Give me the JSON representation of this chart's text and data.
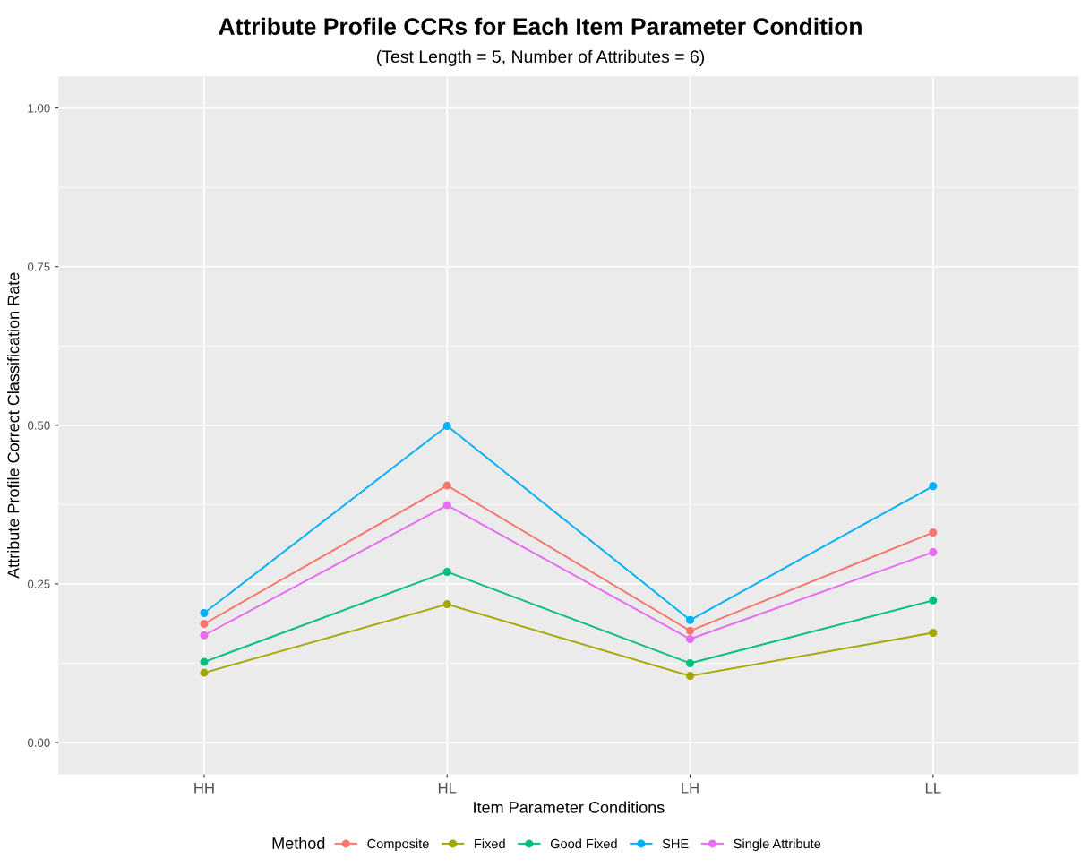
{
  "chart_data": {
    "type": "line",
    "title": "Attribute Profile CCRs for Each Item Parameter Condition",
    "subtitle": "(Test Length = 5, Number of Attributes = 6)",
    "xlabel": "Item Parameter Conditions",
    "ylabel": "Attribute Profile Correct Classification Rate",
    "legend_title": "Method",
    "categories": [
      "HH",
      "HL",
      "LH",
      "LL"
    ],
    "series": [
      {
        "name": "Composite",
        "color": "#f8766d",
        "values": [
          0.187,
          0.405,
          0.176,
          0.331
        ]
      },
      {
        "name": "Fixed",
        "color": "#a3a500",
        "values": [
          0.11,
          0.218,
          0.105,
          0.173
        ]
      },
      {
        "name": "Good Fixed",
        "color": "#00bf7d",
        "values": [
          0.127,
          0.269,
          0.125,
          0.224
        ]
      },
      {
        "name": "SHE",
        "color": "#00b0f6",
        "values": [
          0.204,
          0.499,
          0.193,
          0.404
        ]
      },
      {
        "name": "Single Attribute",
        "color": "#e76bf3",
        "values": [
          0.169,
          0.374,
          0.163,
          0.3
        ]
      }
    ],
    "ylim": [
      -0.05,
      1.05
    ],
    "yticks": [
      {
        "value": 0,
        "label": "0.00"
      },
      {
        "value": 0.25,
        "label": "0.25"
      },
      {
        "value": 0.5,
        "label": "0.50"
      },
      {
        "value": 0.75,
        "label": "0.75"
      },
      {
        "value": 1,
        "label": "1.00"
      }
    ],
    "grid": true,
    "legend": "bottom",
    "marker": "circle",
    "line_style": "solid"
  }
}
